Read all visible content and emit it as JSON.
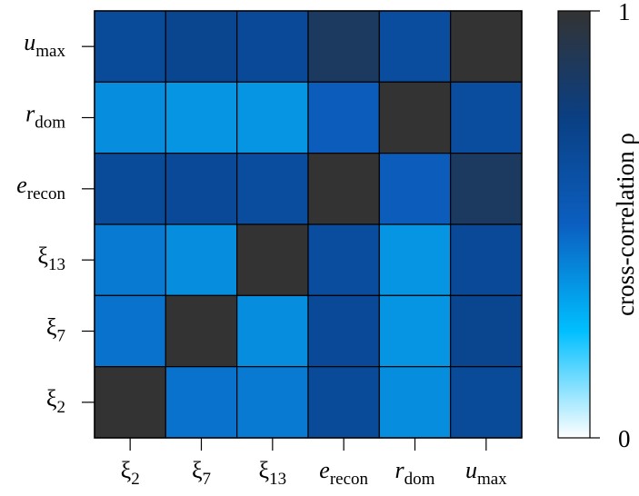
{
  "chart_data": {
    "type": "heatmap",
    "title": "",
    "x_categories": [
      {
        "base": "ξ",
        "sub": "2",
        "italic": false
      },
      {
        "base": "ξ",
        "sub": "7",
        "italic": false
      },
      {
        "base": "ξ",
        "sub": "13",
        "italic": false
      },
      {
        "base": "e",
        "sub": "recon",
        "italic": true
      },
      {
        "base": "r",
        "sub": "dom",
        "italic": true
      },
      {
        "base": "u",
        "sub": "max",
        "italic": true
      }
    ],
    "y_categories_top_to_bottom": [
      {
        "base": "u",
        "sub": "max",
        "italic": true
      },
      {
        "base": "r",
        "sub": "dom",
        "italic": true
      },
      {
        "base": "e",
        "sub": "recon",
        "italic": true
      },
      {
        "base": "ξ",
        "sub": "13",
        "italic": false
      },
      {
        "base": "ξ",
        "sub": "7",
        "italic": false
      },
      {
        "base": "ξ",
        "sub": "2",
        "italic": false
      }
    ],
    "values_top_to_bottom": [
      [
        0.66,
        0.7,
        0.67,
        0.86,
        0.64,
        1.0
      ],
      [
        0.38,
        0.36,
        0.36,
        0.52,
        1.0,
        0.64
      ],
      [
        0.66,
        0.67,
        0.64,
        1.0,
        0.52,
        0.86
      ],
      [
        0.43,
        0.38,
        1.0,
        0.64,
        0.36,
        0.67
      ],
      [
        0.45,
        1.0,
        0.38,
        0.67,
        0.36,
        0.7
      ],
      [
        1.0,
        0.45,
        0.43,
        0.66,
        0.38,
        0.66
      ]
    ],
    "colorbar": {
      "label": "cross-correlation ρ",
      "min": 0,
      "max": 1,
      "tick_labels": [
        "1",
        "0"
      ],
      "colors": [
        "#ffffff",
        "#00bfff",
        "#0b5fc0",
        "#0a3f83",
        "#333333"
      ]
    }
  }
}
